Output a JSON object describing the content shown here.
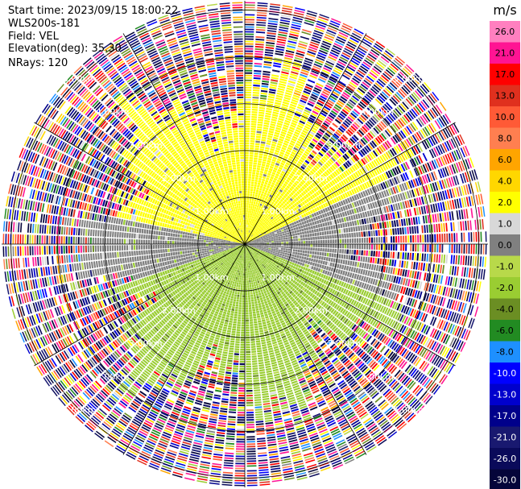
{
  "info": {
    "start_time": "Start time: 2023/09/15 18:00:22",
    "instrument": "WLS200s-181",
    "field": "Field: VEL",
    "elevation": "Elevation(deg): 35.30",
    "nrays": "NRays: 120"
  },
  "colorbar": {
    "unit": "m/s",
    "levels": [
      26.0,
      21.0,
      17.0,
      13.0,
      10.0,
      8.0,
      6.0,
      4.0,
      2.0,
      1.0,
      0.0,
      -1.0,
      -2.0,
      -4.0,
      -6.0,
      -8.0,
      -10.0,
      -13.0,
      -17.0,
      -21.0,
      -26.0,
      -30.0
    ],
    "labels": [
      "26.0",
      "21.0",
      "17.0",
      "13.0",
      "10.0",
      "8.0",
      "6.0",
      "4.0",
      "2.0",
      "1.0",
      "0.0",
      "-1.0",
      "-2.0",
      "-4.0",
      "-6.0",
      "-8.0",
      "-10.0",
      "-13.0",
      "-17.0",
      "-21.0",
      "-26.0",
      "-30.0"
    ],
    "colors": [
      "#ff7fbf",
      "#ff1493",
      "#ff0000",
      "#e0301e",
      "#ff5a36",
      "#ff7f50",
      "#ffa500",
      "#ffd700",
      "#ffff00",
      "#d8d8d8",
      "#808080",
      "#b8d94a",
      "#9acd32",
      "#6b8e23",
      "#228b22",
      "#1e90ff",
      "#0000ff",
      "#0000cd",
      "#00008b",
      "#191970",
      "#0a0a5a",
      "#05053a"
    ]
  },
  "chart_data": {
    "type": "heatmap",
    "projection": "polar-ppi",
    "field": "VEL",
    "units": "m/s",
    "nrays": 120,
    "range_rings_km": [
      1.0,
      2.0,
      3.0,
      4.0,
      5.0
    ],
    "ring_labels": [
      "1.00km",
      "2.00km",
      "3.00km",
      "4.00km",
      "5.00km"
    ],
    "max_range_km": 5.2,
    "gates_per_ray": 100,
    "valid_range_km": 3.3,
    "valid_sectors": [
      {
        "from_deg": 0,
        "to_deg": 65,
        "value": 2.0
      },
      {
        "from_deg": 65,
        "to_deg": 110,
        "value": 0.0
      },
      {
        "from_deg": 110,
        "to_deg": 250,
        "value": -2.0
      },
      {
        "from_deg": 250,
        "to_deg": 280,
        "value": 0.0
      },
      {
        "from_deg": 280,
        "to_deg": 360,
        "value": 2.0
      }
    ],
    "noise_range_km": [
      -30,
      26
    ]
  }
}
